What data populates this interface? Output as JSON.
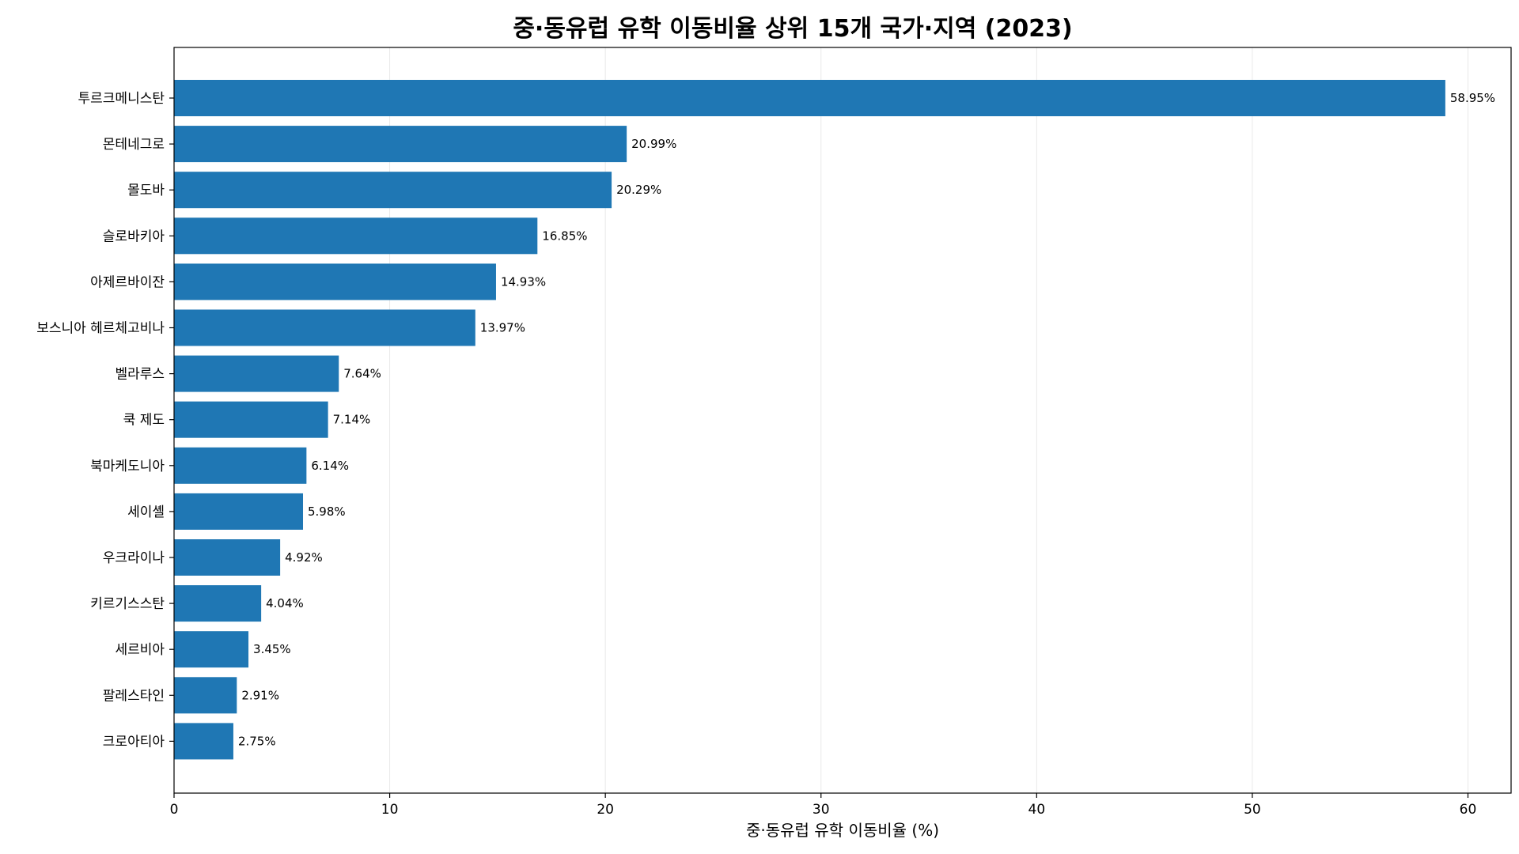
{
  "chart_data": {
    "type": "bar",
    "orientation": "horizontal",
    "title": "중·동유럽 유학 이동비율 상위 15개 국가·지역 (2023)",
    "xlabel": "중·동유럽 유학 이동비율 (%)",
    "ylabel": "",
    "xlim": [
      0,
      62
    ],
    "xticks": [
      0,
      10,
      20,
      30,
      40,
      50,
      60
    ],
    "grid": "vertical",
    "bar_color": "#1f77b4",
    "categories": [
      "투르크메니스탄",
      "몬테네그로",
      "몰도바",
      "슬로바키아",
      "아제르바이잔",
      "보스니아 헤르체고비나",
      "벨라루스",
      "쿡 제도",
      "북마케도니아",
      "세이셸",
      "우크라이나",
      "키르기스스탄",
      "세르비아",
      "팔레스타인",
      "크로아티아"
    ],
    "values": [
      58.95,
      20.99,
      20.29,
      16.85,
      14.93,
      13.97,
      7.64,
      7.14,
      6.14,
      5.98,
      4.92,
      4.04,
      3.45,
      2.91,
      2.75
    ],
    "value_labels": [
      "58.95%",
      "20.99%",
      "20.29%",
      "16.85%",
      "14.93%",
      "13.97%",
      "7.64%",
      "7.14%",
      "6.14%",
      "5.98%",
      "4.92%",
      "4.04%",
      "3.45%",
      "2.91%",
      "2.75%"
    ]
  }
}
